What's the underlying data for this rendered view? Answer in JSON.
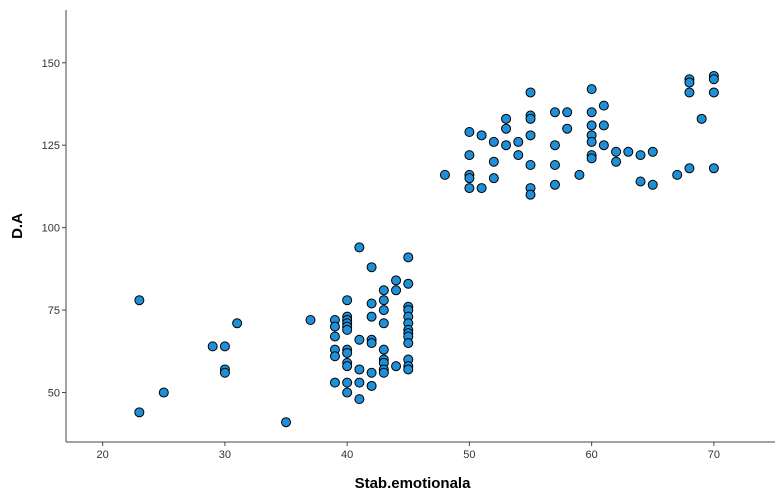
{
  "chart_data": {
    "type": "scatter",
    "xlabel": "Stab.emotionala",
    "ylabel": "D.A",
    "xlim": [
      17,
      75
    ],
    "ylim": [
      35,
      166
    ],
    "xticks": [
      20,
      30,
      40,
      50,
      60,
      70
    ],
    "yticks": [
      50,
      75,
      100,
      125,
      150
    ],
    "xtick_labels": [
      "20",
      "30",
      "40",
      "50",
      "60",
      "70"
    ],
    "ytick_labels": [
      "50",
      "75",
      "100",
      "125",
      "150"
    ],
    "grid": false,
    "point_color": "#1f8fd8",
    "point_edge_color": "#000000",
    "points": [
      [
        23,
        78
      ],
      [
        23,
        44
      ],
      [
        25,
        50
      ],
      [
        29,
        64
      ],
      [
        30,
        64
      ],
      [
        30,
        57
      ],
      [
        30,
        56
      ],
      [
        31,
        71
      ],
      [
        35,
        41
      ],
      [
        37,
        72
      ],
      [
        39,
        72
      ],
      [
        39,
        70
      ],
      [
        39,
        67
      ],
      [
        39,
        63
      ],
      [
        39,
        61
      ],
      [
        39,
        53
      ],
      [
        40,
        78
      ],
      [
        40,
        73
      ],
      [
        40,
        72
      ],
      [
        40,
        71
      ],
      [
        40,
        70
      ],
      [
        40,
        69
      ],
      [
        40,
        63
      ],
      [
        40,
        62
      ],
      [
        40,
        59
      ],
      [
        40,
        58
      ],
      [
        40,
        53
      ],
      [
        40,
        50
      ],
      [
        41,
        94
      ],
      [
        41,
        66
      ],
      [
        41,
        57
      ],
      [
        41,
        53
      ],
      [
        41,
        48
      ],
      [
        42,
        88
      ],
      [
        42,
        77
      ],
      [
        42,
        73
      ],
      [
        42,
        66
      ],
      [
        42,
        65
      ],
      [
        42,
        56
      ],
      [
        42,
        52
      ],
      [
        43,
        81
      ],
      [
        43,
        78
      ],
      [
        43,
        75
      ],
      [
        43,
        71
      ],
      [
        43,
        63
      ],
      [
        43,
        60
      ],
      [
        43,
        59
      ],
      [
        43,
        57
      ],
      [
        43,
        56
      ],
      [
        44,
        84
      ],
      [
        44,
        81
      ],
      [
        44,
        58
      ],
      [
        45,
        91
      ],
      [
        45,
        83
      ],
      [
        45,
        76
      ],
      [
        45,
        75
      ],
      [
        45,
        73
      ],
      [
        45,
        71
      ],
      [
        45,
        69
      ],
      [
        45,
        68
      ],
      [
        45,
        67
      ],
      [
        45,
        65
      ],
      [
        45,
        60
      ],
      [
        45,
        58
      ],
      [
        45,
        57
      ],
      [
        48,
        116
      ],
      [
        50,
        129
      ],
      [
        50,
        122
      ],
      [
        50,
        116
      ],
      [
        50,
        115
      ],
      [
        50,
        112
      ],
      [
        51,
        128
      ],
      [
        51,
        112
      ],
      [
        52,
        126
      ],
      [
        52,
        120
      ],
      [
        52,
        115
      ],
      [
        53,
        133
      ],
      [
        53,
        130
      ],
      [
        53,
        125
      ],
      [
        54,
        126
      ],
      [
        54,
        122
      ],
      [
        55,
        141
      ],
      [
        55,
        134
      ],
      [
        55,
        133
      ],
      [
        55,
        128
      ],
      [
        55,
        119
      ],
      [
        55,
        112
      ],
      [
        55,
        110
      ],
      [
        57,
        135
      ],
      [
        57,
        125
      ],
      [
        57,
        119
      ],
      [
        57,
        113
      ],
      [
        58,
        135
      ],
      [
        58,
        130
      ],
      [
        59,
        116
      ],
      [
        60,
        142
      ],
      [
        60,
        135
      ],
      [
        60,
        131
      ],
      [
        60,
        128
      ],
      [
        60,
        126
      ],
      [
        60,
        122
      ],
      [
        60,
        121
      ],
      [
        61,
        137
      ],
      [
        61,
        131
      ],
      [
        61,
        125
      ],
      [
        62,
        123
      ],
      [
        62,
        120
      ],
      [
        63,
        123
      ],
      [
        64,
        122
      ],
      [
        64,
        114
      ],
      [
        65,
        123
      ],
      [
        65,
        113
      ],
      [
        67,
        116
      ],
      [
        68,
        145
      ],
      [
        68,
        144
      ],
      [
        68,
        141
      ],
      [
        68,
        118
      ],
      [
        69,
        133
      ],
      [
        70,
        146
      ],
      [
        70,
        145
      ],
      [
        70,
        141
      ],
      [
        70,
        118
      ]
    ]
  }
}
